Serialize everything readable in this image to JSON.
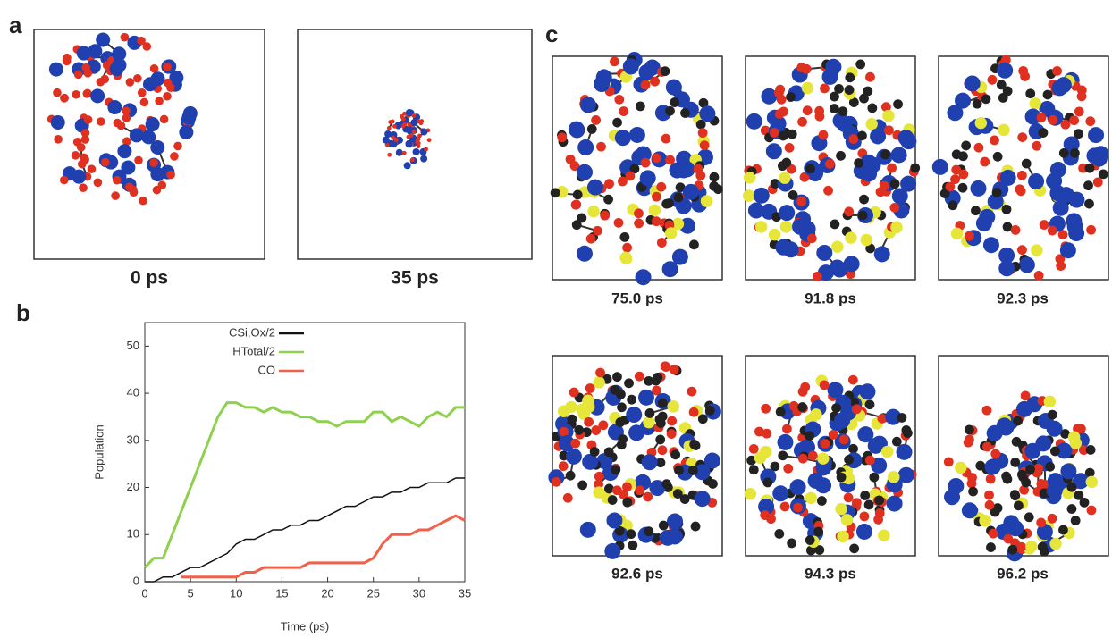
{
  "panel_labels": [
    "a",
    "b",
    "c"
  ],
  "panel_a": {
    "captions": [
      "0 ps",
      "35 ps"
    ]
  },
  "panel_c": {
    "captions": [
      "75.0 ps",
      "91.8 ps",
      "92.3 ps",
      "92.6 ps",
      "94.3 ps",
      "96.2 ps"
    ]
  },
  "chart_data": {
    "type": "line",
    "x_label": "Time (ps)",
    "y_label": "Population",
    "xlim": [
      0,
      35
    ],
    "ylim": [
      0,
      55
    ],
    "xticks": [
      0,
      5,
      10,
      15,
      20,
      25,
      30,
      35
    ],
    "yticks": [
      0,
      10,
      20,
      30,
      40,
      50
    ],
    "legend": "upper-left",
    "x": [
      0,
      1,
      2,
      3,
      4,
      5,
      6,
      7,
      8,
      9,
      10,
      11,
      12,
      13,
      14,
      15,
      16,
      17,
      18,
      19,
      20,
      21,
      22,
      23,
      24,
      25,
      26,
      27,
      28,
      29,
      30,
      31,
      32,
      33,
      34,
      35
    ],
    "series": [
      {
        "name": "CSi,Ox/2",
        "color": "#111111",
        "values": [
          0,
          0,
          1,
          1,
          2,
          3,
          3,
          4,
          5,
          6,
          8,
          9,
          9,
          10,
          11,
          11,
          12,
          12,
          13,
          13,
          14,
          15,
          16,
          16,
          17,
          18,
          18,
          19,
          19,
          20,
          20,
          21,
          21,
          21,
          22,
          22
        ]
      },
      {
        "name": "HTotal/2",
        "color": "#8fd14f",
        "values": [
          3,
          5,
          5,
          10,
          15,
          20,
          25,
          30,
          35,
          38,
          38,
          37,
          37,
          36,
          37,
          36,
          36,
          35,
          35,
          34,
          34,
          33,
          34,
          34,
          34,
          36,
          36,
          34,
          35,
          34,
          33,
          35,
          36,
          35,
          37,
          37
        ]
      },
      {
        "name": "CO",
        "color": "#f0604a",
        "values": [
          null,
          null,
          null,
          null,
          1,
          1,
          1,
          1,
          1,
          1,
          1,
          2,
          2,
          3,
          3,
          3,
          3,
          3,
          4,
          4,
          4,
          4,
          4,
          4,
          4,
          5,
          8,
          10,
          10,
          10,
          11,
          11,
          12,
          13,
          14,
          13
        ]
      }
    ]
  }
}
